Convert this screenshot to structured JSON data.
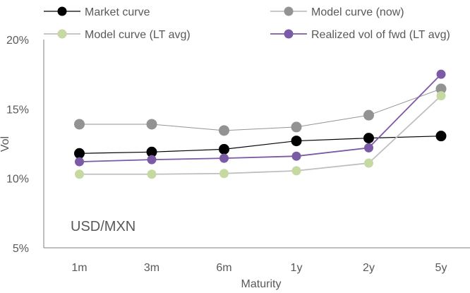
{
  "chart_data": {
    "type": "line",
    "title": "",
    "xlabel": "Maturity",
    "ylabel": "Vol",
    "annotation": "USD/MXN",
    "categories": [
      "1m",
      "3m",
      "6m",
      "1y",
      "2y",
      "5y"
    ],
    "ylim": [
      5,
      20
    ],
    "yticks": [
      5,
      10,
      15,
      20
    ],
    "ytick_labels": [
      "5%",
      "10%",
      "15%",
      "20%"
    ],
    "grid": false,
    "legend_position": "top",
    "series": [
      {
        "name": "Market curve",
        "values": [
          11.8,
          11.9,
          12.1,
          12.7,
          12.9,
          13.05
        ],
        "color": "#000000",
        "line_color": "#000000"
      },
      {
        "name": "Model curve (now)",
        "values": [
          13.9,
          13.9,
          13.45,
          13.7,
          14.55,
          16.45
        ],
        "color": "#939393",
        "line_color": "#939393"
      },
      {
        "name": "Model curve (LT avg)",
        "values": [
          10.3,
          10.3,
          10.35,
          10.55,
          11.1,
          15.95
        ],
        "color": "#c6d9a0",
        "line_color": "#bfbfbf"
      },
      {
        "name": "Realized vol of fwd (LT avg)",
        "values": [
          11.2,
          11.35,
          11.45,
          11.6,
          12.2,
          17.5
        ],
        "color": "#7b5aa6",
        "line_color": "#7b5aa6"
      }
    ]
  }
}
